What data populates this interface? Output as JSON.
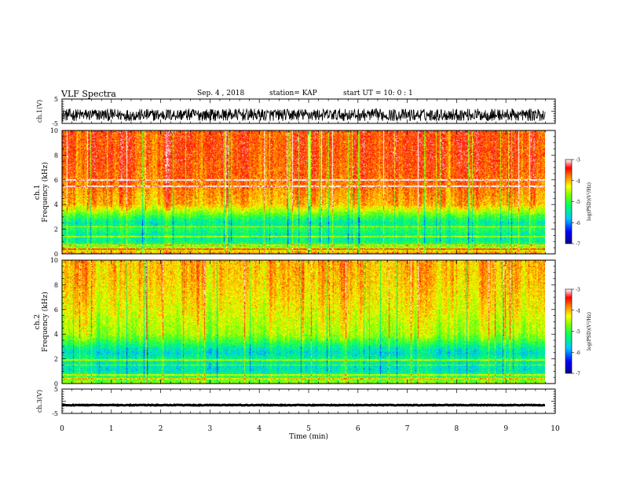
{
  "header": {
    "title": "VLF Spectra",
    "date": "Sep. 4 , 2018",
    "station": "station= KAP",
    "start": "start  UT =   10: 0  : 1"
  },
  "colors": {
    "spectrum_colormap": [
      "#00008c",
      "#0000ff",
      "#00c8ff",
      "#00ff66",
      "#80ff00",
      "#ffff00",
      "#ff8000",
      "#ff0000",
      "#ffffff"
    ],
    "trace": "#000000"
  },
  "chart_data": [
    {
      "type": "line",
      "name": "ch1-waveform",
      "ylabel": "ch.1(V)",
      "ylim": [
        -5,
        5
      ],
      "yticks": [
        "5",
        "-5"
      ],
      "x": [
        0,
        0.5,
        1,
        1.5,
        2,
        2.5,
        3,
        3.5,
        4,
        4.5,
        5,
        5.5,
        6,
        6.5,
        7,
        7.5,
        8,
        8.5,
        9,
        9.5,
        9.8
      ],
      "y": [
        -1.5,
        -1.5,
        -1.5,
        -1.6,
        -1.5,
        -1.4,
        -1.5,
        -1.4,
        -1.5,
        -1.6,
        -1.4,
        -1.5,
        -1.5,
        -1.5,
        -1.6,
        -1.5,
        -1.4,
        -1.5,
        -1.5,
        -1.5,
        -1.5
      ],
      "amplitude": 2.5
    },
    {
      "type": "heatmap",
      "name": "ch1-spectrogram",
      "ylabel_top": "ch.1",
      "ylabel": "Frequency  (kHz)",
      "ylim": [
        0,
        10
      ],
      "yticks": [
        "0",
        "2",
        "4",
        "6",
        "8",
        "10"
      ],
      "colorbar_label": "log(PSD)(V²/Hz)",
      "colorbar_ticks": [
        "-3",
        "-4",
        "-5",
        "-6",
        "-7"
      ],
      "clim": [
        -7,
        -3
      ],
      "freq_kHz": [
        0,
        0.5,
        1,
        1.5,
        2,
        2.5,
        3,
        3.5,
        4,
        6,
        8,
        10
      ],
      "mean_log_psd": [
        -3.8,
        -4.6,
        -5.3,
        -5.4,
        -5.1,
        -5.4,
        -5.0,
        -4.5,
        -4.0,
        -3.7,
        -3.6,
        -3.6
      ],
      "lines_kHz": [
        0.4,
        0.7,
        1.4,
        2.2,
        5.5,
        6.0
      ],
      "time_extent_min": [
        0,
        9.8
      ]
    },
    {
      "type": "heatmap",
      "name": "ch2-spectrogram",
      "ylabel_top": "ch.2",
      "ylabel": "Frequency  (kHz)",
      "ylim": [
        0,
        10
      ],
      "yticks": [
        "0",
        "2",
        "4",
        "6",
        "8",
        "10"
      ],
      "colorbar_label": "log(PSD)(V²/Hz)",
      "colorbar_ticks": [
        "-3",
        "-4",
        "-5",
        "-6",
        "-7"
      ],
      "clim": [
        -7,
        -3
      ],
      "freq_kHz": [
        0,
        0.5,
        1,
        1.5,
        2,
        2.5,
        3,
        3.5,
        4,
        6,
        8,
        10
      ],
      "mean_log_psd": [
        -4.6,
        -5.0,
        -5.5,
        -5.5,
        -5.3,
        -5.6,
        -5.3,
        -4.9,
        -4.6,
        -4.3,
        -4.1,
        -4.0
      ],
      "lines_kHz": [
        0.4,
        0.7,
        1.5,
        1.9
      ],
      "time_extent_min": [
        0,
        9.8
      ]
    },
    {
      "type": "line",
      "name": "ch3-waveform",
      "ylabel": "ch.3(V)",
      "ylim": [
        -5,
        5
      ],
      "yticks": [
        "5",
        "-5"
      ],
      "x": [
        0,
        9.8
      ],
      "y": [
        -1.6,
        -1.6
      ],
      "amplitude": 0.15
    }
  ],
  "xaxis": {
    "label": "Time  (min)",
    "ticks": [
      "0",
      "1",
      "2",
      "3",
      "4",
      "5",
      "6",
      "7",
      "8",
      "9",
      "10"
    ],
    "xlim": [
      0,
      10
    ]
  }
}
